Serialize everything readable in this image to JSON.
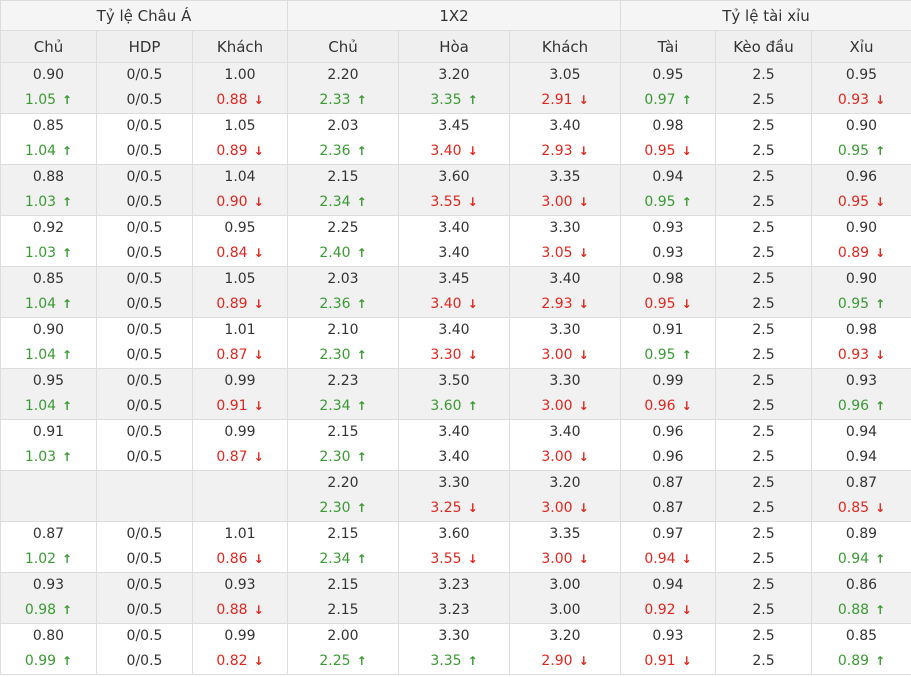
{
  "groups": [
    "Tỷ lệ Châu Á",
    "1X2",
    "Tỷ lệ tài xỉu"
  ],
  "columns": [
    "Chủ",
    "HDP",
    "Khách",
    "Chủ",
    "Hòa",
    "Khách",
    "Tài",
    "Kèo đầu",
    "Xỉu"
  ],
  "icons": {
    "up": "arrow-up-icon",
    "down": "arrow-down-icon"
  },
  "colors": {
    "up": "#3a9a33",
    "down": "#e0261e"
  },
  "rows": [
    [
      [
        "0.90",
        "1.05",
        "up"
      ],
      [
        "0/0.5",
        "0/0.5",
        ""
      ],
      [
        "1.00",
        "0.88",
        "down"
      ],
      [
        "2.20",
        "2.33",
        "up"
      ],
      [
        "3.20",
        "3.35",
        "up"
      ],
      [
        "3.05",
        "2.91",
        "down"
      ],
      [
        "0.95",
        "0.97",
        "up"
      ],
      [
        "2.5",
        "2.5",
        ""
      ],
      [
        "0.95",
        "0.93",
        "down"
      ]
    ],
    [
      [
        "0.85",
        "1.04",
        "up"
      ],
      [
        "0/0.5",
        "0/0.5",
        ""
      ],
      [
        "1.05",
        "0.89",
        "down"
      ],
      [
        "2.03",
        "2.36",
        "up"
      ],
      [
        "3.45",
        "3.40",
        "down"
      ],
      [
        "3.40",
        "2.93",
        "down"
      ],
      [
        "0.98",
        "0.95",
        "down"
      ],
      [
        "2.5",
        "2.5",
        ""
      ],
      [
        "0.90",
        "0.95",
        "up"
      ]
    ],
    [
      [
        "0.88",
        "1.03",
        "up"
      ],
      [
        "0/0.5",
        "0/0.5",
        ""
      ],
      [
        "1.04",
        "0.90",
        "down"
      ],
      [
        "2.15",
        "2.34",
        "up"
      ],
      [
        "3.60",
        "3.55",
        "down"
      ],
      [
        "3.35",
        "3.00",
        "down"
      ],
      [
        "0.94",
        "0.95",
        "up"
      ],
      [
        "2.5",
        "2.5",
        ""
      ],
      [
        "0.96",
        "0.95",
        "down"
      ]
    ],
    [
      [
        "0.92",
        "1.03",
        "up"
      ],
      [
        "0/0.5",
        "0/0.5",
        ""
      ],
      [
        "0.95",
        "0.84",
        "down"
      ],
      [
        "2.25",
        "2.40",
        "up"
      ],
      [
        "3.40",
        "3.40",
        ""
      ],
      [
        "3.30",
        "3.05",
        "down"
      ],
      [
        "0.93",
        "0.93",
        ""
      ],
      [
        "2.5",
        "2.5",
        ""
      ],
      [
        "0.90",
        "0.89",
        "down"
      ]
    ],
    [
      [
        "0.85",
        "1.04",
        "up"
      ],
      [
        "0/0.5",
        "0/0.5",
        ""
      ],
      [
        "1.05",
        "0.89",
        "down"
      ],
      [
        "2.03",
        "2.36",
        "up"
      ],
      [
        "3.45",
        "3.40",
        "down"
      ],
      [
        "3.40",
        "2.93",
        "down"
      ],
      [
        "0.98",
        "0.95",
        "down"
      ],
      [
        "2.5",
        "2.5",
        ""
      ],
      [
        "0.90",
        "0.95",
        "up"
      ]
    ],
    [
      [
        "0.90",
        "1.04",
        "up"
      ],
      [
        "0/0.5",
        "0/0.5",
        ""
      ],
      [
        "1.01",
        "0.87",
        "down"
      ],
      [
        "2.10",
        "2.30",
        "up"
      ],
      [
        "3.40",
        "3.30",
        "down"
      ],
      [
        "3.30",
        "3.00",
        "down"
      ],
      [
        "0.91",
        "0.95",
        "up"
      ],
      [
        "2.5",
        "2.5",
        ""
      ],
      [
        "0.98",
        "0.93",
        "down"
      ]
    ],
    [
      [
        "0.95",
        "1.04",
        "up"
      ],
      [
        "0/0.5",
        "0/0.5",
        ""
      ],
      [
        "0.99",
        "0.91",
        "down"
      ],
      [
        "2.23",
        "2.34",
        "up"
      ],
      [
        "3.50",
        "3.60",
        "up"
      ],
      [
        "3.30",
        "3.00",
        "down"
      ],
      [
        "0.99",
        "0.96",
        "down"
      ],
      [
        "2.5",
        "2.5",
        ""
      ],
      [
        "0.93",
        "0.96",
        "up"
      ]
    ],
    [
      [
        "0.91",
        "1.03",
        "up"
      ],
      [
        "0/0.5",
        "0/0.5",
        ""
      ],
      [
        "0.99",
        "0.87",
        "down"
      ],
      [
        "2.15",
        "2.30",
        "up"
      ],
      [
        "3.40",
        "3.40",
        ""
      ],
      [
        "3.40",
        "3.00",
        "down"
      ],
      [
        "0.96",
        "0.96",
        ""
      ],
      [
        "2.5",
        "2.5",
        ""
      ],
      [
        "0.94",
        "0.94",
        ""
      ]
    ],
    [
      [
        "",
        "",
        ""
      ],
      [
        "",
        "",
        ""
      ],
      [
        "",
        "",
        ""
      ],
      [
        "2.20",
        "2.30",
        "up"
      ],
      [
        "3.30",
        "3.25",
        "down"
      ],
      [
        "3.20",
        "3.00",
        "down"
      ],
      [
        "0.87",
        "0.87",
        ""
      ],
      [
        "2.5",
        "2.5",
        ""
      ],
      [
        "0.87",
        "0.85",
        "down"
      ]
    ],
    [
      [
        "0.87",
        "1.02",
        "up"
      ],
      [
        "0/0.5",
        "0/0.5",
        ""
      ],
      [
        "1.01",
        "0.86",
        "down"
      ],
      [
        "2.15",
        "2.34",
        "up"
      ],
      [
        "3.60",
        "3.55",
        "down"
      ],
      [
        "3.35",
        "3.00",
        "down"
      ],
      [
        "0.97",
        "0.94",
        "down"
      ],
      [
        "2.5",
        "2.5",
        ""
      ],
      [
        "0.89",
        "0.94",
        "up"
      ]
    ],
    [
      [
        "0.93",
        "0.98",
        "up"
      ],
      [
        "0/0.5",
        "0/0.5",
        ""
      ],
      [
        "0.93",
        "0.88",
        "down"
      ],
      [
        "2.15",
        "2.15",
        ""
      ],
      [
        "3.23",
        "3.23",
        ""
      ],
      [
        "3.00",
        "3.00",
        ""
      ],
      [
        "0.94",
        "0.92",
        "down"
      ],
      [
        "2.5",
        "2.5",
        ""
      ],
      [
        "0.86",
        "0.88",
        "up"
      ]
    ],
    [
      [
        "0.80",
        "0.99",
        "up"
      ],
      [
        "0/0.5",
        "0/0.5",
        ""
      ],
      [
        "0.99",
        "0.82",
        "down"
      ],
      [
        "2.00",
        "2.25",
        "up"
      ],
      [
        "3.30",
        "3.35",
        "up"
      ],
      [
        "3.20",
        "2.90",
        "down"
      ],
      [
        "0.93",
        "0.91",
        "down"
      ],
      [
        "2.5",
        "2.5",
        ""
      ],
      [
        "0.85",
        "0.89",
        "up"
      ]
    ]
  ]
}
